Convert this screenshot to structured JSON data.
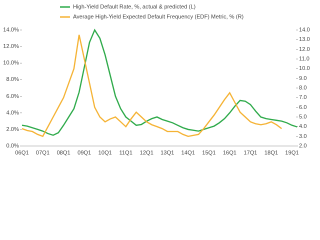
{
  "chart_data": {
    "type": "line",
    "categories": [
      "06Q1",
      null,
      null,
      null,
      "07Q1",
      null,
      null,
      null,
      "08Q1",
      null,
      null,
      null,
      "09Q1",
      null,
      null,
      null,
      "10Q1",
      null,
      null,
      null,
      "11Q1",
      null,
      null,
      null,
      "12Q1",
      null,
      null,
      null,
      "13Q1",
      null,
      null,
      null,
      "14Q1",
      null,
      null,
      null,
      "15Q1",
      null,
      null,
      null,
      "16Q1",
      null,
      null,
      null,
      "17Q1",
      null,
      null,
      null,
      "18Q1",
      null,
      null,
      null,
      "19Q1",
      null
    ],
    "series": [
      {
        "name": "High-Yield Default Rate, %, actual & predicted (L)",
        "color": "#2eaa4a",
        "values": [
          2.5,
          2.4,
          2.2,
          2.0,
          1.8,
          1.5,
          1.3,
          1.6,
          2.5,
          3.5,
          4.5,
          6.5,
          9.5,
          12.5,
          14.0,
          13.0,
          11.0,
          8.5,
          6.0,
          4.5,
          3.5,
          3.0,
          2.5,
          2.6,
          3.0,
          3.3,
          3.5,
          3.2,
          3.0,
          2.8,
          2.5,
          2.2,
          2.0,
          1.9,
          1.8,
          2.0,
          2.2,
          2.4,
          2.8,
          3.3,
          4.0,
          4.8,
          5.5,
          5.4,
          5.0,
          4.2,
          3.5,
          3.3,
          3.2,
          3.1,
          3.0,
          2.8,
          2.5,
          2.3
        ]
      },
      {
        "name": "Average High-Yield Expected Default Frequency (EDF) Metric, % (R)",
        "color": "#f5b335",
        "axis": "y2",
        "values": [
          3.8,
          3.6,
          3.5,
          3.2,
          3.0,
          4.0,
          5.0,
          6.0,
          7.0,
          8.5,
          10.0,
          13.5,
          11.0,
          8.5,
          6.0,
          5.0,
          4.5,
          4.8,
          5.0,
          4.5,
          4.0,
          4.8,
          5.5,
          5.0,
          4.5,
          4.2,
          4.0,
          3.8,
          3.5,
          3.5,
          3.5,
          3.2,
          3.0,
          3.1,
          3.2,
          3.8,
          4.5,
          5.2,
          6.0,
          6.8,
          7.5,
          6.5,
          5.5,
          5.0,
          4.5,
          4.3,
          4.2,
          4.3,
          4.5,
          4.2,
          3.8,
          null,
          null,
          null
        ]
      }
    ],
    "ylim": [
      0,
      14
    ],
    "yticks": [
      {
        "value": 0,
        "label": "0.0%"
      },
      {
        "value": 2,
        "label": "2.0%"
      },
      {
        "value": 4,
        "label": "4.0%"
      },
      {
        "value": 6,
        "label": "6.0%"
      },
      {
        "value": 8,
        "label": "8.0%"
      },
      {
        "value": 10,
        "label": "10.0%"
      },
      {
        "value": 12,
        "label": "12.0%"
      },
      {
        "value": 14,
        "label": "14.0%"
      }
    ],
    "y2lim": [
      2,
      14
    ],
    "y2ticks": [
      {
        "value": 2,
        "label": "2.0"
      },
      {
        "value": 3,
        "label": "3.0"
      },
      {
        "value": 4,
        "label": "4.0"
      },
      {
        "value": 5,
        "label": "5.0"
      },
      {
        "value": 6,
        "label": "6.0"
      },
      {
        "value": 7,
        "label": "7.0"
      },
      {
        "value": 8,
        "label": "8.0"
      },
      {
        "value": 9,
        "label": "9.0"
      },
      {
        "value": 10,
        "label": "10.0"
      },
      {
        "value": 11,
        "label": "11.0"
      },
      {
        "value": 12,
        "label": "12.0"
      },
      {
        "value": 13,
        "label": "13.0"
      },
      {
        "value": 14,
        "label": "14.0"
      }
    ],
    "grid": false,
    "legend": "top"
  }
}
